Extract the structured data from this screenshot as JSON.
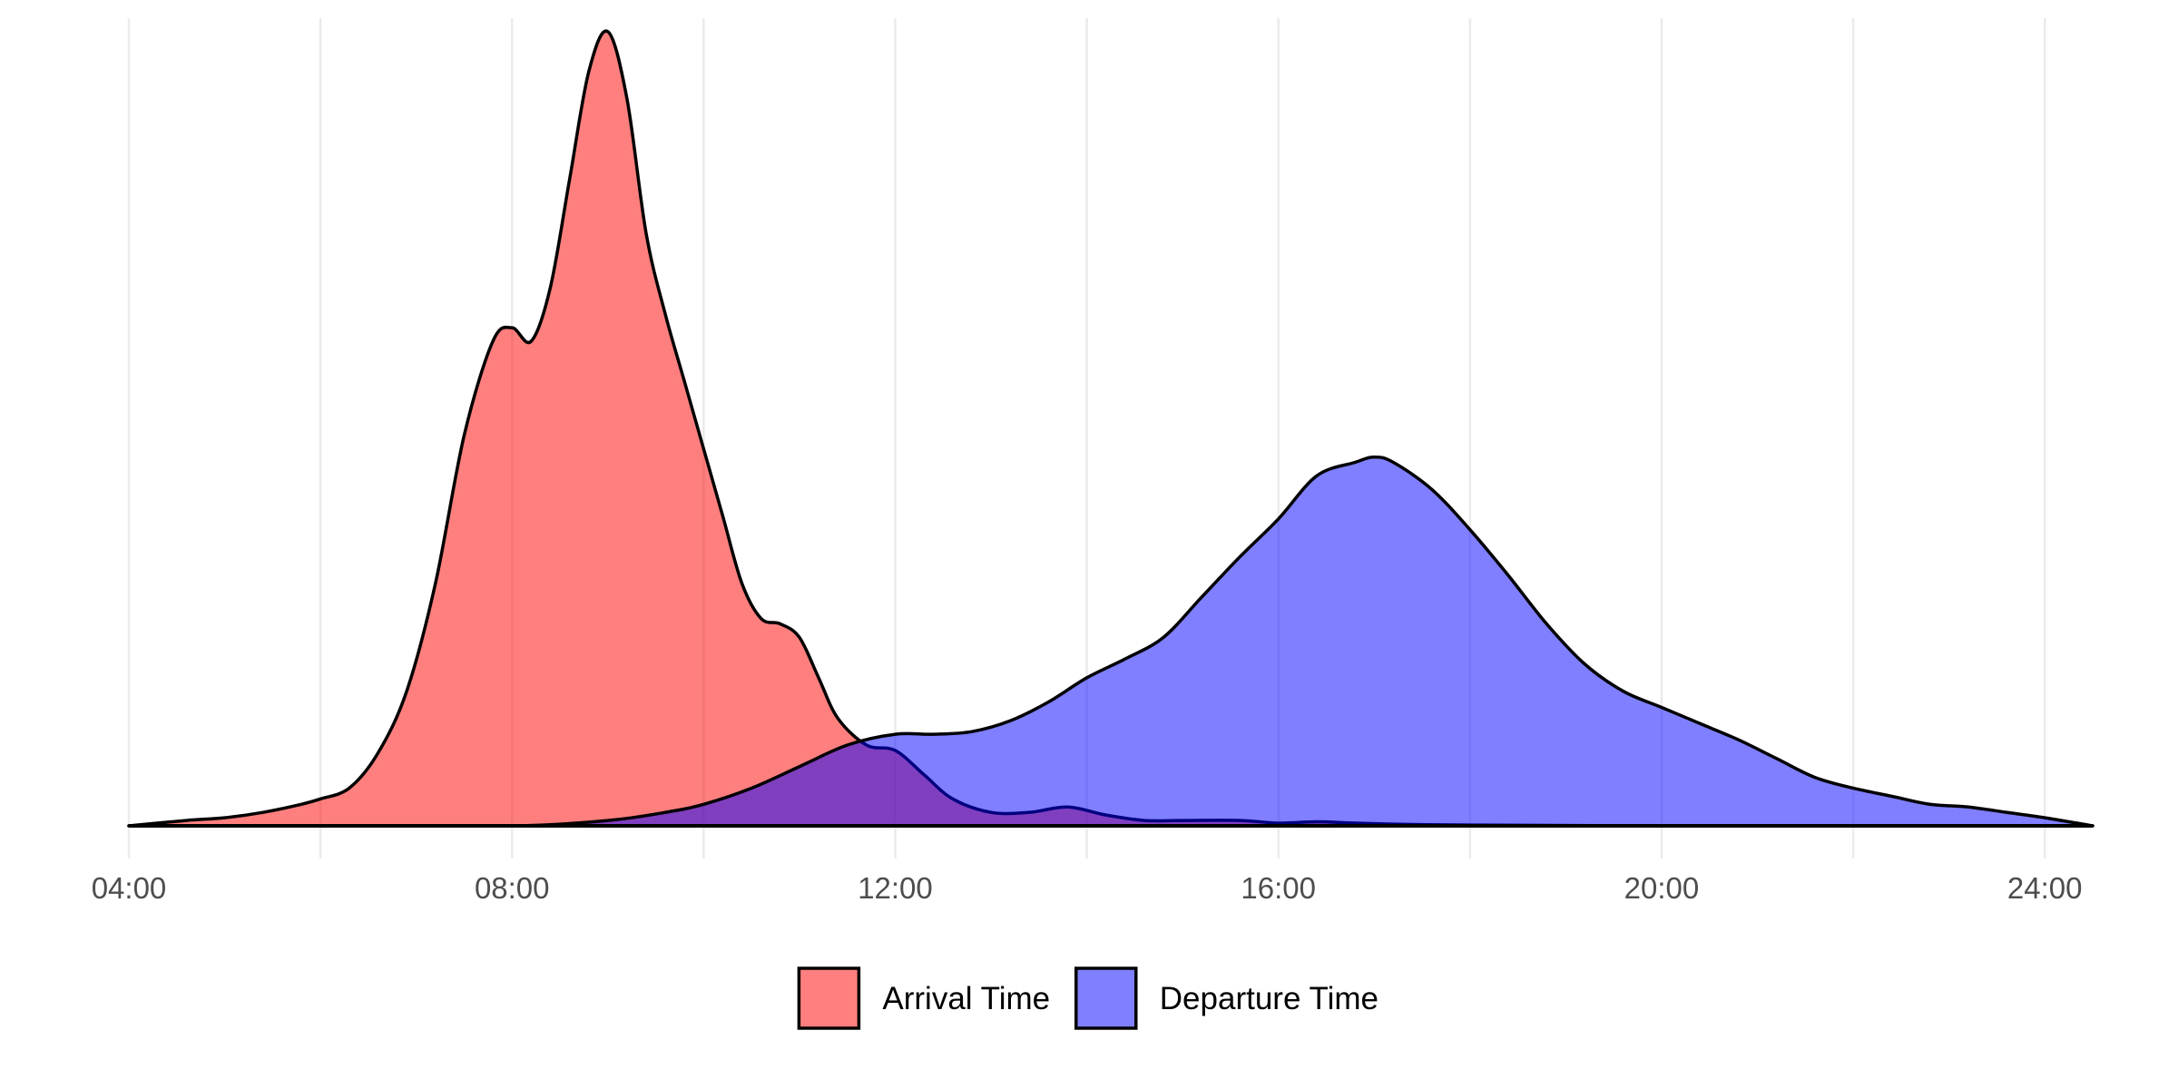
{
  "chart_data": {
    "type": "area",
    "title": "",
    "xlabel": "",
    "ylabel": "",
    "x_unit": "hour of day",
    "xlim": [
      4.0,
      24.5
    ],
    "ylim": [
      0,
      0.3
    ],
    "x_ticks": [
      "04:00",
      "08:00",
      "12:00",
      "16:00",
      "20:00",
      "24:00"
    ],
    "x_tick_values": [
      4,
      8,
      12,
      16,
      20,
      24
    ],
    "x_minor_gridlines": [
      6,
      10,
      14,
      18,
      22
    ],
    "y_axis_visible": false,
    "grid": "vertical",
    "legend_position": "bottom",
    "series": [
      {
        "name": "Arrival Time",
        "color": "#ff0000",
        "fill_opacity": 0.5,
        "x": [
          4.0,
          4.6,
          5.0,
          5.4,
          5.8,
          6.0,
          6.3,
          6.6,
          6.9,
          7.2,
          7.5,
          7.8,
          8.0,
          8.2,
          8.4,
          8.6,
          8.8,
          9.0,
          9.2,
          9.4,
          9.6,
          9.8,
          10.0,
          10.2,
          10.4,
          10.6,
          10.8,
          11.0,
          11.2,
          11.4,
          11.7,
          12.0,
          12.3,
          12.6,
          13.0,
          13.4,
          13.8,
          14.2,
          14.6,
          15.0,
          15.6,
          16.0,
          16.4,
          16.8,
          17.4,
          18.0,
          20.0,
          22.0,
          24.5
        ],
        "y": [
          0.0,
          0.002,
          0.003,
          0.005,
          0.008,
          0.01,
          0.014,
          0.027,
          0.05,
          0.09,
          0.145,
          0.18,
          0.185,
          0.18,
          0.2,
          0.24,
          0.28,
          0.295,
          0.27,
          0.22,
          0.19,
          0.165,
          0.14,
          0.115,
          0.09,
          0.077,
          0.075,
          0.07,
          0.055,
          0.04,
          0.03,
          0.028,
          0.019,
          0.01,
          0.005,
          0.005,
          0.007,
          0.004,
          0.002,
          0.002,
          0.002,
          0.001,
          0.0015,
          0.001,
          0.0005,
          0.0003,
          0.0,
          0.0,
          0.0
        ]
      },
      {
        "name": "Departure Time",
        "color": "#0000ff",
        "fill_opacity": 0.5,
        "x": [
          4.0,
          6.0,
          8.0,
          9.0,
          9.6,
          10.0,
          10.5,
          11.0,
          11.5,
          12.0,
          12.4,
          12.8,
          13.2,
          13.6,
          14.0,
          14.4,
          14.8,
          15.2,
          15.6,
          16.0,
          16.4,
          16.8,
          17.0,
          17.2,
          17.6,
          18.0,
          18.4,
          18.8,
          19.2,
          19.6,
          20.0,
          20.4,
          20.8,
          21.2,
          21.6,
          22.0,
          22.4,
          22.8,
          23.2,
          23.6,
          24.0,
          24.5
        ],
        "y": [
          0.0,
          0.0,
          0.0,
          0.002,
          0.005,
          0.008,
          0.014,
          0.022,
          0.03,
          0.034,
          0.034,
          0.035,
          0.039,
          0.046,
          0.055,
          0.062,
          0.07,
          0.085,
          0.1,
          0.114,
          0.13,
          0.135,
          0.137,
          0.135,
          0.125,
          0.11,
          0.093,
          0.075,
          0.06,
          0.05,
          0.044,
          0.038,
          0.032,
          0.025,
          0.018,
          0.014,
          0.011,
          0.008,
          0.007,
          0.005,
          0.003,
          0.0
        ]
      }
    ]
  }
}
